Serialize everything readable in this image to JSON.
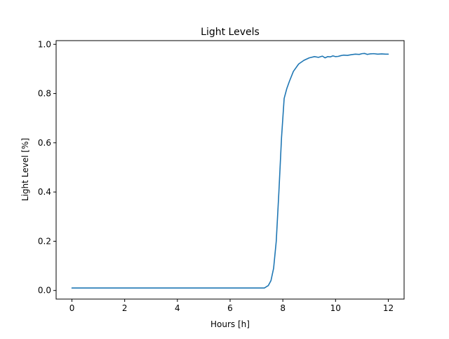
{
  "chart_data": {
    "type": "line",
    "title": "Light Levels",
    "xlabel": "Hours [h]",
    "ylabel": "Light Level [%]",
    "xlim": [
      -0.6,
      12.6
    ],
    "ylim": [
      -0.035,
      1.015
    ],
    "x_ticks": [
      0,
      2,
      4,
      6,
      8,
      10,
      12
    ],
    "x_tick_labels": [
      "0",
      "2",
      "4",
      "6",
      "8",
      "10",
      "12"
    ],
    "y_ticks": [
      0.0,
      0.2,
      0.4,
      0.6,
      0.8,
      1.0
    ],
    "y_tick_labels": [
      "0.0",
      "0.2",
      "0.4",
      "0.6",
      "0.8",
      "1.0"
    ],
    "grid": false,
    "legend": "none",
    "series": [
      {
        "color": "#1f77b4",
        "x": [
          0,
          1,
          2,
          3,
          4,
          5,
          6,
          7,
          7.3,
          7.45,
          7.55,
          7.65,
          7.75,
          7.85,
          7.95,
          8.05,
          8.15,
          8.25,
          8.4,
          8.6,
          8.8,
          9.0,
          9.2,
          9.35,
          9.5,
          9.6,
          9.7,
          9.8,
          9.9,
          10.0,
          10.1,
          10.2,
          10.3,
          10.45,
          10.6,
          10.75,
          10.9,
          11.0,
          11.1,
          11.2,
          11.3,
          11.45,
          11.6,
          11.75,
          11.9,
          12.0
        ],
        "y": [
          0.01,
          0.01,
          0.01,
          0.01,
          0.01,
          0.01,
          0.01,
          0.01,
          0.01,
          0.02,
          0.04,
          0.09,
          0.2,
          0.4,
          0.62,
          0.78,
          0.82,
          0.85,
          0.89,
          0.92,
          0.935,
          0.945,
          0.95,
          0.947,
          0.952,
          0.945,
          0.95,
          0.949,
          0.953,
          0.95,
          0.951,
          0.954,
          0.956,
          0.955,
          0.958,
          0.96,
          0.959,
          0.962,
          0.963,
          0.959,
          0.961,
          0.962,
          0.96,
          0.961,
          0.96,
          0.96
        ]
      }
    ]
  }
}
